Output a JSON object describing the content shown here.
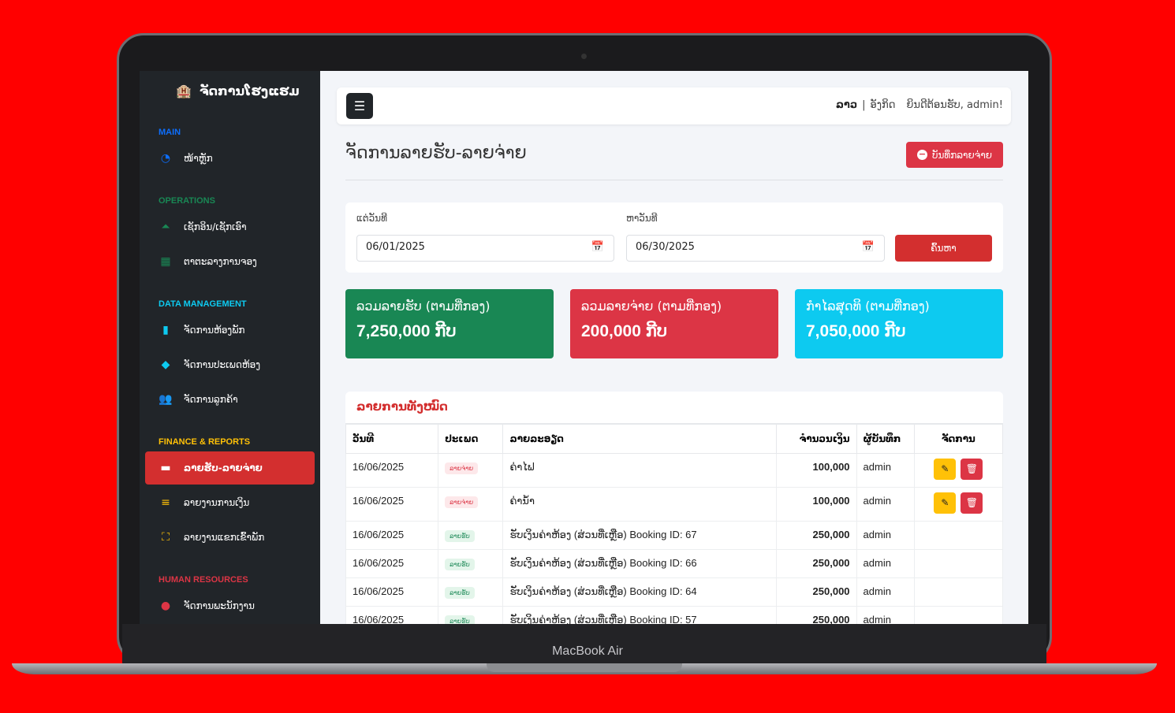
{
  "device": {
    "label": "MacBook Air"
  },
  "sidebar": {
    "title": "ຈັດການໂຮງແຮມ",
    "sections": [
      {
        "label": "MAIN",
        "color": "#0d6efd",
        "items": [
          {
            "label": "ໜ້າຫຼັກ",
            "icon": "dashboard-icon",
            "color": "#0d6efd"
          }
        ]
      },
      {
        "label": "OPERATIONS",
        "color": "#198754",
        "items": [
          {
            "label": "ເຊັກອິນ/ເຊັກເອົາ",
            "icon": "concierge-bell-icon",
            "color": "#198754"
          },
          {
            "label": "ຕາຕະລາງການຈອງ",
            "icon": "calendar-icon",
            "color": "#198754"
          }
        ]
      },
      {
        "label": "DATA MANAGEMENT",
        "color": "#0dcaf0",
        "items": [
          {
            "label": "ຈັດການຫ້ອງພັກ",
            "icon": "door-icon",
            "color": "#0dcaf0"
          },
          {
            "label": "ຈັດການປະເພດຫ້ອງ",
            "icon": "tags-icon",
            "color": "#0dcaf0"
          },
          {
            "label": "ຈັດການລູກຄ້າ",
            "icon": "users-icon",
            "color": "#0dcaf0"
          }
        ]
      },
      {
        "label": "FINANCE & REPORTS",
        "color": "#ffc107",
        "items": [
          {
            "label": "ລາຍຮັບ-ລາຍຈ່າຍ",
            "icon": "wallet-icon",
            "active": true
          },
          {
            "label": "ລາຍງານການເງິນ",
            "icon": "chart-icon",
            "color": "#ffc107"
          },
          {
            "label": "ລາຍງານແຂກເຂົ້າພັກ",
            "icon": "guests-icon",
            "color": "#ffc107"
          }
        ]
      },
      {
        "label": "HUMAN RESOURCES",
        "color": "#dc3545",
        "items": [
          {
            "label": "ຈັດການພະນັກງານ",
            "icon": "user-tie-icon",
            "color": "#dc3545"
          }
        ]
      }
    ]
  },
  "topbar": {
    "lang_lao": "ລາວ",
    "separator": "|",
    "lang_en": "ອັງກິດ",
    "welcome": "ຍິນດີຕ້ອນຮັບ, admin!"
  },
  "page": {
    "title": "ຈັດການລາຍຮັບ-ລາຍຈ່າຍ",
    "add_expense": "ບັນທຶກລາຍຈ່າຍ"
  },
  "filter": {
    "from_label": "ແຕ່ວັນທີ",
    "from_value": "06/01/2025",
    "to_label": "ຫາວັນທີ",
    "to_value": "06/30/2025",
    "search": "ຄົ້ນຫາ"
  },
  "cards": [
    {
      "title": "ລວມລາຍຮັບ (ຕາມທີ່ກອງ)",
      "value": "7,250,000 ກີບ",
      "color": "#198754"
    },
    {
      "title": "ລວມລາຍຈ່າຍ (ຕາມທີ່ກອງ)",
      "value": "200,000 ກີບ",
      "color": "#dc3545"
    },
    {
      "title": "ກຳໄລສຸດທິ (ຕາມທີ່ກອງ)",
      "value": "7,050,000 ກີບ",
      "color": "#0dcaf0"
    }
  ],
  "list": {
    "title": "ລາຍການທັງໝົດ",
    "headers": [
      "ວັນທີ",
      "ປະເພດ",
      "ລາຍລະອຽດ",
      "ຈຳນວນເງິນ",
      "ຜູ້ບັນທຶກ",
      "ຈັດການ"
    ],
    "rows": [
      {
        "date": "16/06/2025",
        "type": "ລາຍຈ່າຍ",
        "kind": "expense",
        "desc": "ຄ່າໄຟ",
        "amount": "100,000",
        "by": "admin",
        "actions": true
      },
      {
        "date": "16/06/2025",
        "type": "ລາຍຈ່າຍ",
        "kind": "expense",
        "desc": "ຄ່ານ້ຳ",
        "amount": "100,000",
        "by": "admin",
        "actions": true
      },
      {
        "date": "16/06/2025",
        "type": "ລາຍຮັບ",
        "kind": "income",
        "desc": "ຮັບເງິນຄ່າຫ້ອງ (ສ່ວນທີ່ເຫຼືອ) Booking ID: 67",
        "amount": "250,000",
        "by": "admin",
        "actions": false
      },
      {
        "date": "16/06/2025",
        "type": "ລາຍຮັບ",
        "kind": "income",
        "desc": "ຮັບເງິນຄ່າຫ້ອງ (ສ່ວນທີ່ເຫຼືອ) Booking ID: 66",
        "amount": "250,000",
        "by": "admin",
        "actions": false
      },
      {
        "date": "16/06/2025",
        "type": "ລາຍຮັບ",
        "kind": "income",
        "desc": "ຮັບເງິນຄ່າຫ້ອງ (ສ່ວນທີ່ເຫຼືອ) Booking ID: 64",
        "amount": "250,000",
        "by": "admin",
        "actions": false
      },
      {
        "date": "16/06/2025",
        "type": "ລາຍຮັບ",
        "kind": "income",
        "desc": "ຮັບເງິນຄ່າຫ້ອງ (ສ່ວນທີ່ເຫຼືອ) Booking ID: 57",
        "amount": "250,000",
        "by": "admin",
        "actions": false
      }
    ]
  }
}
